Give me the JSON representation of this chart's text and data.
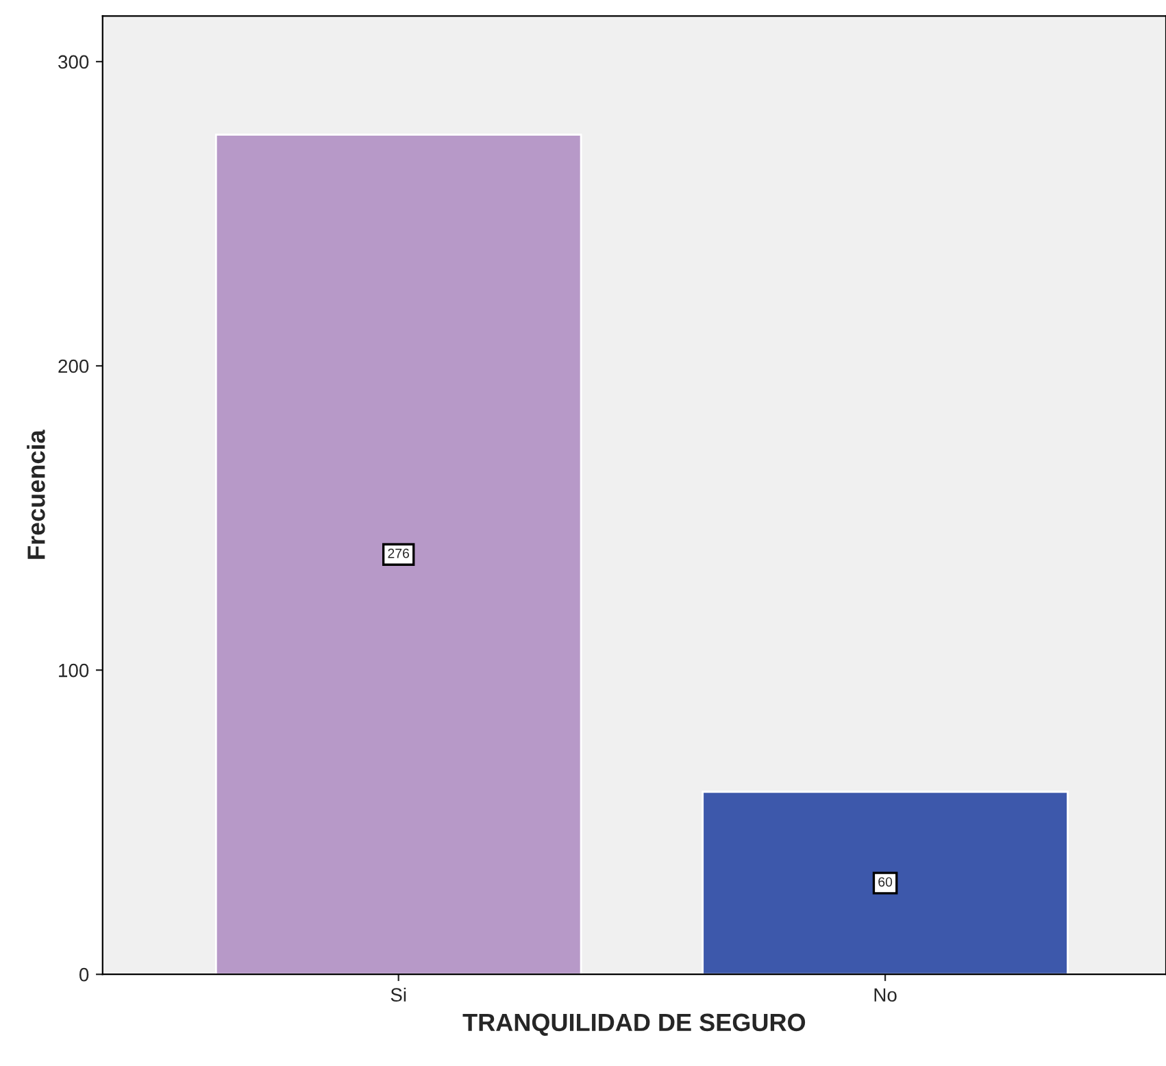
{
  "chart_data": {
    "type": "bar",
    "xlabel": "TRANQUILIDAD DE SEGURO",
    "ylabel": "Frecuencia",
    "categories": [
      "Si",
      "No"
    ],
    "values": [
      276,
      60
    ],
    "colors": [
      "#b799c8",
      "#3d58ab"
    ],
    "ylim": [
      0,
      315
    ],
    "yticks": [
      0,
      100,
      200,
      300
    ],
    "data_labels": true,
    "grid": false,
    "legend": false
  }
}
